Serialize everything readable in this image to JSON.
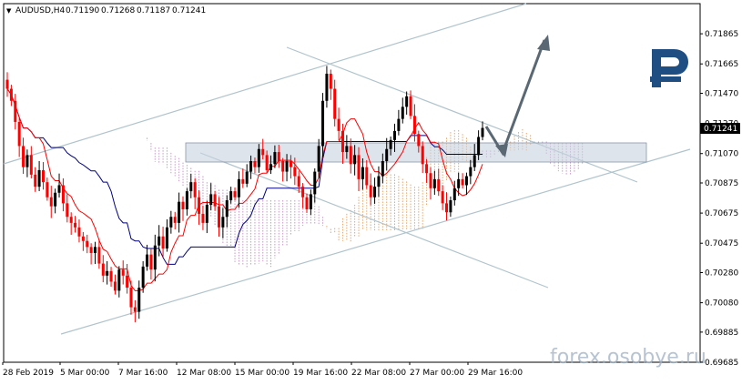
{
  "header": {
    "menu_glyph": "▼",
    "symbol": "AUDUSD,H4",
    "open": "0.71190",
    "high": "0.71268",
    "low": "0.71187",
    "close": "0.71241"
  },
  "current_price": "0.71241",
  "watermark": "forex.osobye.ru",
  "logo_icon": "broker-logo-icon",
  "colors": {
    "bull": "#000000",
    "bear": "#ff0000",
    "kijun": "#000080",
    "tenkan": "#ff0000",
    "cloud": "#e8a56b",
    "cloud2": "#c89ac8",
    "channel": "#b0c4cc",
    "zone": "#c8d2e0",
    "arrow": "#5a6874",
    "logo": "#1f4e82"
  },
  "chart_data": {
    "type": "candlestick",
    "title": "AUDUSD,H4",
    "ylim": [
      0.69685,
      0.72065
    ],
    "y_ticks": [
      "0.71865",
      "0.71665",
      "0.71470",
      "0.71270",
      "0.71070",
      "0.70875",
      "0.70675",
      "0.70475",
      "0.70280",
      "0.70080",
      "0.69885",
      "0.69685"
    ],
    "x_ticks": [
      "28 Feb 2019",
      "5 Mar 00:00",
      "7 Mar 16:00",
      "12 Mar 08:00",
      "15 Mar 00:00",
      "19 Mar 16:00",
      "22 Mar 08:00",
      "27 Mar 00:00",
      "29 Mar 16:00"
    ],
    "close_series": [
      0.715,
      0.7142,
      0.7128,
      0.7112,
      0.7098,
      0.7106,
      0.7093,
      0.7085,
      0.7096,
      0.7088,
      0.7078,
      0.7072,
      0.7081,
      0.7086,
      0.7074,
      0.7065,
      0.7061,
      0.7058,
      0.7052,
      0.7049,
      0.7045,
      0.7041,
      0.7045,
      0.7034,
      0.7026,
      0.7029,
      0.7022,
      0.7016,
      0.703,
      0.7026,
      0.7018,
      0.7005,
      0.7002,
      0.7018,
      0.7032,
      0.704,
      0.703,
      0.7046,
      0.7052,
      0.7044,
      0.7058,
      0.7065,
      0.7061,
      0.7075,
      0.707,
      0.7082,
      0.7088,
      0.7078,
      0.7067,
      0.7061,
      0.7073,
      0.708,
      0.7072,
      0.7058,
      0.7065,
      0.7076,
      0.7082,
      0.7078,
      0.709,
      0.7087,
      0.7095,
      0.7102,
      0.7098,
      0.711,
      0.7106,
      0.7096,
      0.71,
      0.7108,
      0.7102,
      0.7095,
      0.7102,
      0.7098,
      0.7092,
      0.7085,
      0.7078,
      0.707,
      0.708,
      0.7095,
      0.7112,
      0.7142,
      0.716,
      0.715,
      0.713,
      0.7122,
      0.7108,
      0.7112,
      0.71,
      0.7106,
      0.709,
      0.7098,
      0.7086,
      0.7078,
      0.7085,
      0.7092,
      0.7102,
      0.711,
      0.7116,
      0.7122,
      0.713,
      0.7138,
      0.7145,
      0.7132,
      0.712,
      0.7112,
      0.71,
      0.7094,
      0.7084,
      0.709,
      0.7082,
      0.7074,
      0.7068,
      0.7076,
      0.7084,
      0.709,
      0.7086,
      0.7092,
      0.7098,
      0.7106,
      0.7118,
      0.7124
    ],
    "annotations": {
      "channel_upper": [
        [
          0.7089,
          0.7207
        ]
      ],
      "channel_lower": [
        [
          0.6992,
          0.7104
        ]
      ],
      "triangle_upper": [
        [
          0.7183,
          0.7089
        ]
      ],
      "triangle_lower": [
        [
          0.7094,
          0.7019
        ]
      ],
      "support_zone": [
        0.7104,
        0.7114
      ],
      "forecast_arrow": [
        [
          0.7126,
          0.7108
        ],
        [
          0.7108,
          0.7188
        ]
      ]
    }
  }
}
